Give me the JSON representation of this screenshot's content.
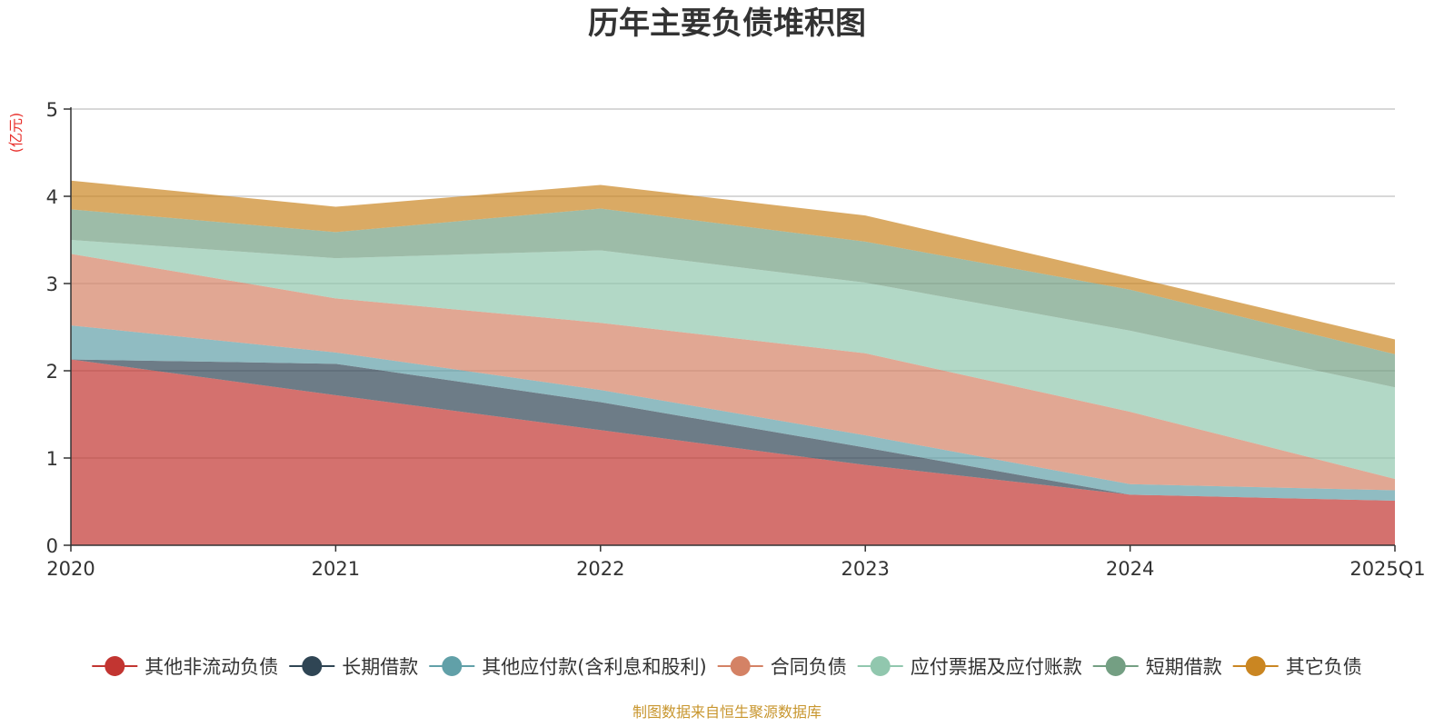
{
  "chart_data": {
    "type": "area",
    "stacked": true,
    "title": "历年主要负债堆积图",
    "unit_label": "(亿元)",
    "source_note": "制图数据来自恒生聚源数据库",
    "categories": [
      "2020",
      "2021",
      "2022",
      "2023",
      "2024",
      "2025Q1"
    ],
    "ylim": [
      0,
      5
    ],
    "yticks": [
      "0",
      "1",
      "2",
      "3",
      "4",
      "5"
    ],
    "grid": true,
    "legend_position": "bottom",
    "series": [
      {
        "name": "其他非流动负债",
        "color": "#c23531",
        "values": [
          2.13,
          1.72,
          1.32,
          0.92,
          0.58,
          0.51
        ]
      },
      {
        "name": "长期借款",
        "color": "#2f4554",
        "values": [
          0.0,
          0.36,
          0.32,
          0.2,
          0.0,
          0.0
        ]
      },
      {
        "name": "其他应付款(含利息和股利)",
        "color": "#61a0a8",
        "values": [
          0.39,
          0.13,
          0.14,
          0.14,
          0.12,
          0.12
        ]
      },
      {
        "name": "合同负债",
        "color": "#d48265",
        "values": [
          0.82,
          0.62,
          0.77,
          0.94,
          0.83,
          0.13
        ]
      },
      {
        "name": "应付票据及应付账款",
        "color": "#91c7ae",
        "values": [
          0.16,
          0.46,
          0.83,
          0.81,
          0.93,
          1.05
        ]
      },
      {
        "name": "短期借款",
        "color": "#749f83",
        "values": [
          0.35,
          0.3,
          0.48,
          0.47,
          0.47,
          0.38
        ]
      },
      {
        "name": "其它负债",
        "color": "#ca8622",
        "values": [
          0.33,
          0.29,
          0.27,
          0.3,
          0.15,
          0.17
        ]
      }
    ]
  }
}
